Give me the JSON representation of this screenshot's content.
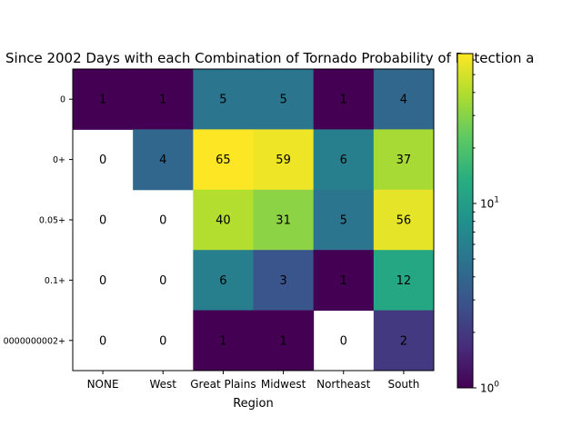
{
  "chart_data": {
    "type": "heatmap",
    "title": "Since 2002 Days with each Combination of Tornado Probability of Detection a",
    "xlabel": "Region",
    "ylabel": "",
    "x_categories": [
      "NONE",
      "West",
      "Great Plains",
      "Midwest",
      "Northeast",
      "South"
    ],
    "y_categories": [
      "0",
      "0+",
      "0.05+",
      "0.1+",
      "0000000002+"
    ],
    "values": [
      [
        1,
        1,
        5,
        5,
        1,
        4
      ],
      [
        0,
        4,
        65,
        59,
        6,
        37
      ],
      [
        0,
        0,
        40,
        31,
        5,
        56
      ],
      [
        0,
        0,
        6,
        3,
        1,
        12
      ],
      [
        0,
        0,
        1,
        1,
        0,
        2
      ]
    ],
    "colorbar": {
      "scale": "log",
      "colormap": "viridis",
      "range": [
        1,
        65
      ],
      "tick_labels": [
        "10^0",
        "10^1"
      ],
      "masked_color": "#ffffff"
    }
  }
}
